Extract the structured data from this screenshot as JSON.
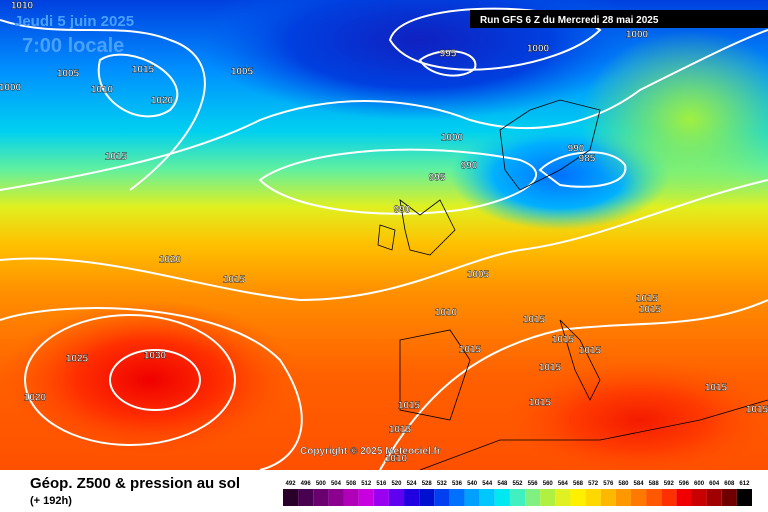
{
  "header": {
    "date": "Jeudi 5 juin 2025",
    "time": "7:00 locale",
    "run": "Run GFS 6 Z du Mercredi 28 mai 2025",
    "copyright": "Copyright © 2025 Meteociel.fr"
  },
  "footer": {
    "title": "Géop. Z500 & pression au sol",
    "subtitle": "(+ 192h)"
  },
  "isobar_labels": [
    "1010",
    "1005",
    "1015",
    "1010",
    "1020",
    "1000",
    "1005",
    "1015",
    "995",
    "1000",
    "1000",
    "1000",
    "990",
    "995",
    "990",
    "985",
    "990",
    "1020",
    "1015",
    "1005",
    "1010",
    "1015",
    "1015",
    "1015",
    "1015",
    "1015",
    "1015",
    "1030",
    "1025",
    "1020",
    "1015",
    "1015",
    "1015",
    "1015",
    "1015",
    "1010",
    "1015"
  ],
  "scale": {
    "labels": [
      "492",
      "496",
      "500",
      "504",
      "508",
      "512",
      "516",
      "520",
      "524",
      "528",
      "532",
      "536",
      "540",
      "544",
      "548",
      "552",
      "556",
      "560",
      "564",
      "568",
      "572",
      "576",
      "580",
      "584",
      "588",
      "592",
      "596",
      "600",
      "604",
      "608",
      "612"
    ],
    "colors": [
      "#2a002a",
      "#4a0050",
      "#6a0070",
      "#8c0090",
      "#b000b8",
      "#c800e0",
      "#9a00f0",
      "#6000f0",
      "#2000e0",
      "#0010d0",
      "#0040f0",
      "#0070ff",
      "#00a0ff",
      "#00c8ff",
      "#00e8f0",
      "#40f0c0",
      "#80f080",
      "#b0f040",
      "#e0f020",
      "#fff000",
      "#ffd800",
      "#ffb800",
      "#ff9800",
      "#ff7800",
      "#ff5800",
      "#ff3000",
      "#f00000",
      "#c80000",
      "#a00000",
      "#700000",
      "#000000"
    ]
  }
}
